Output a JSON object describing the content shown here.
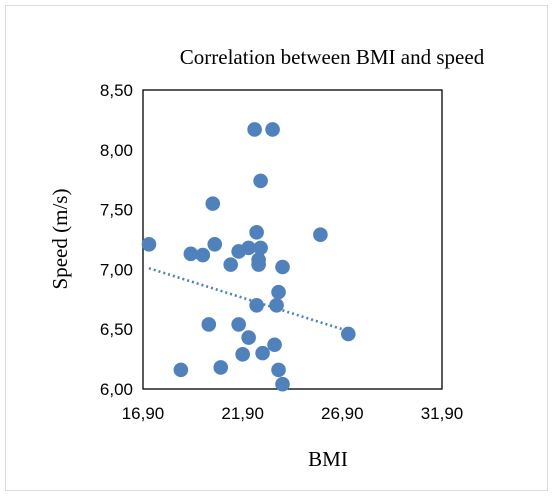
{
  "chart_data": {
    "type": "scatter",
    "title": "Correlation between BMI and speed",
    "xlabel": "BMI",
    "ylabel": "Speed (m/s)",
    "xlim": [
      16.9,
      31.9
    ],
    "ylim": [
      6.0,
      8.5
    ],
    "x_ticks": [
      "16,90",
      "21,90",
      "26,90",
      "31,90"
    ],
    "y_ticks": [
      "6,00",
      "6,50",
      "7,00",
      "7,50",
      "8,00",
      "8,50"
    ],
    "grid": false,
    "legend": "none",
    "marker_color": "#4f81bd",
    "trendline": {
      "type": "linear",
      "style": "dotted",
      "color": "#4f81bd",
      "points": [
        [
          17.2,
          7.01
        ],
        [
          26.9,
          6.5
        ]
      ]
    },
    "points": [
      {
        "x": 17.2,
        "y": 7.21
      },
      {
        "x": 18.8,
        "y": 6.16
      },
      {
        "x": 19.3,
        "y": 7.13
      },
      {
        "x": 19.9,
        "y": 7.12
      },
      {
        "x": 20.2,
        "y": 6.54
      },
      {
        "x": 20.4,
        "y": 7.55
      },
      {
        "x": 20.5,
        "y": 7.21
      },
      {
        "x": 20.8,
        "y": 6.18
      },
      {
        "x": 21.3,
        "y": 7.04
      },
      {
        "x": 21.7,
        "y": 6.54
      },
      {
        "x": 21.7,
        "y": 7.15
      },
      {
        "x": 21.9,
        "y": 6.29
      },
      {
        "x": 22.2,
        "y": 7.18
      },
      {
        "x": 22.2,
        "y": 6.43
      },
      {
        "x": 22.5,
        "y": 8.17
      },
      {
        "x": 22.6,
        "y": 7.31
      },
      {
        "x": 22.6,
        "y": 6.7
      },
      {
        "x": 22.7,
        "y": 7.04
      },
      {
        "x": 22.7,
        "y": 7.08
      },
      {
        "x": 22.8,
        "y": 7.74
      },
      {
        "x": 22.8,
        "y": 7.18
      },
      {
        "x": 22.9,
        "y": 6.3
      },
      {
        "x": 23.4,
        "y": 8.17
      },
      {
        "x": 23.5,
        "y": 6.37
      },
      {
        "x": 23.6,
        "y": 6.7
      },
      {
        "x": 23.7,
        "y": 6.81
      },
      {
        "x": 23.7,
        "y": 6.16
      },
      {
        "x": 23.9,
        "y": 6.04
      },
      {
        "x": 23.9,
        "y": 7.02
      },
      {
        "x": 25.8,
        "y": 7.29
      },
      {
        "x": 27.2,
        "y": 6.46
      }
    ]
  }
}
